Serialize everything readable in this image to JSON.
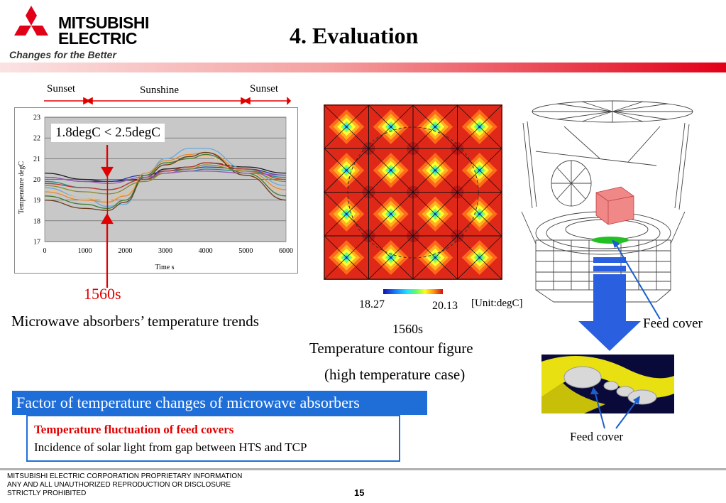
{
  "header": {
    "logo_line1": "MITSUBISHI",
    "logo_line2": "ELECTRIC",
    "tagline": "Changes for the Better",
    "title": "4. Evaluation",
    "brand_color": "#e20018"
  },
  "timeline": {
    "sunset_left": "Sunset",
    "sunshine": "Sunshine",
    "sunset_right": "Sunset"
  },
  "chart": {
    "annotation": "1.8degC < 2.5degC",
    "marker_label": "1560s",
    "caption": "Microwave absorbers’ temperature trends"
  },
  "chart_data": {
    "type": "line",
    "ylabel": "Temperature degC",
    "xlabel": "Time s",
    "xlim": [
      0,
      6000
    ],
    "ylim": [
      17,
      23
    ],
    "xticks": [
      "0",
      "1000",
      "2000",
      "3000",
      "4000",
      "5000",
      "6000"
    ],
    "yticks": [
      "17",
      "18",
      "19",
      "20",
      "21",
      "22",
      "23"
    ],
    "grid": true,
    "marker_x": 1560,
    "series": [
      {
        "color": "#1a1a1a",
        "x": [
          0,
          1000,
          1560,
          2500,
          3000,
          3600,
          4000,
          5000,
          6000
        ],
        "y": [
          20.3,
          20.0,
          19.9,
          20.0,
          20.5,
          20.6,
          20.8,
          20.6,
          20.3
        ]
      },
      {
        "color": "#2a3e9c",
        "x": [
          0,
          1000,
          1560,
          2500,
          3000,
          3600,
          4000,
          5000,
          6000
        ],
        "y": [
          20.1,
          19.9,
          19.9,
          20.2,
          20.4,
          20.5,
          20.6,
          20.5,
          20.2
        ]
      },
      {
        "color": "#66aadd",
        "x": [
          0,
          1000,
          1560,
          2000,
          2500,
          3000,
          3600,
          4000,
          5000,
          6000
        ],
        "y": [
          19.6,
          19.1,
          18.7,
          18.8,
          20.2,
          21.0,
          21.5,
          21.5,
          20.5,
          19.7
        ]
      },
      {
        "color": "#e58a2e",
        "x": [
          0,
          1000,
          1560,
          2000,
          2500,
          3000,
          3600,
          4000,
          5000,
          6000
        ],
        "y": [
          19.4,
          19.0,
          18.9,
          19.2,
          20.3,
          20.9,
          21.2,
          21.3,
          20.4,
          19.5
        ]
      },
      {
        "color": "#f2c08a",
        "x": [
          0,
          1000,
          1560,
          2000,
          2500,
          3000,
          3600,
          4000,
          5000,
          6000
        ],
        "y": [
          19.5,
          19.1,
          19.0,
          19.3,
          20.2,
          20.7,
          21.0,
          21.1,
          20.2,
          19.4
        ]
      },
      {
        "color": "#3d7a2a",
        "x": [
          0,
          1000,
          1560,
          2000,
          2500,
          3000,
          3600,
          4000,
          5000,
          6000
        ],
        "y": [
          19.2,
          18.8,
          18.6,
          19.0,
          20.2,
          20.8,
          21.0,
          21.2,
          20.3,
          19.2
        ]
      },
      {
        "color": "#6b3a1e",
        "x": [
          0,
          1000,
          1560,
          2000,
          2500,
          3000,
          3600,
          4000,
          5000,
          6000
        ],
        "y": [
          19.0,
          18.6,
          18.5,
          18.9,
          20.1,
          20.7,
          21.1,
          21.3,
          20.2,
          19.0
        ]
      },
      {
        "color": "#1f8a8a",
        "x": [
          0,
          1000,
          1560,
          2500,
          3000,
          3600,
          4000,
          5000,
          6000
        ],
        "y": [
          19.9,
          19.6,
          19.5,
          20.0,
          20.3,
          20.4,
          20.5,
          20.4,
          20.1
        ]
      },
      {
        "color": "#8a8a2a",
        "x": [
          0,
          1000,
          1560,
          2500,
          3000,
          3600,
          4000,
          5000,
          6000
        ],
        "y": [
          19.7,
          19.4,
          19.3,
          19.9,
          20.3,
          20.5,
          20.7,
          20.4,
          19.9
        ]
      },
      {
        "color": "#c0392b",
        "x": [
          0,
          1000,
          1560,
          2500,
          3000,
          3600,
          4000,
          5000,
          6000
        ],
        "y": [
          19.8,
          19.6,
          19.5,
          20.0,
          20.4,
          20.6,
          20.8,
          20.5,
          20.0
        ]
      },
      {
        "color": "#9b59b6",
        "x": [
          0,
          1000,
          1560,
          2500,
          3000,
          3600,
          4000,
          5000,
          6000
        ],
        "y": [
          20.1,
          19.9,
          19.8,
          20.1,
          20.3,
          20.4,
          20.4,
          20.3,
          20.2
        ]
      }
    ]
  },
  "contour": {
    "min_label": "18.27",
    "max_label": "20.13",
    "unit": "[Unit:degC]",
    "time_label": "1560s",
    "caption_line1": "Temperature contour figure",
    "caption_line2": "(high temperature case)"
  },
  "model": {
    "feed_cover_label_top": "Feed cover",
    "feed_cover_label_bottom": "Feed cover"
  },
  "factor": {
    "heading": "Factor of temperature changes of microwave absorbers",
    "line1": "Temperature fluctuation of feed covers",
    "line2": "Incidence of solar light from gap between HTS and TCP"
  },
  "footer": {
    "text": "MITSUBISHI ELECTRIC CORPORATION  PROPRIETARY INFORMATION\nANY AND ALL UNAUTHORIZED  REPRODUCTION OR DISCLOSURE\nSTRICTLY PROHIBITED",
    "page_number": "15"
  }
}
